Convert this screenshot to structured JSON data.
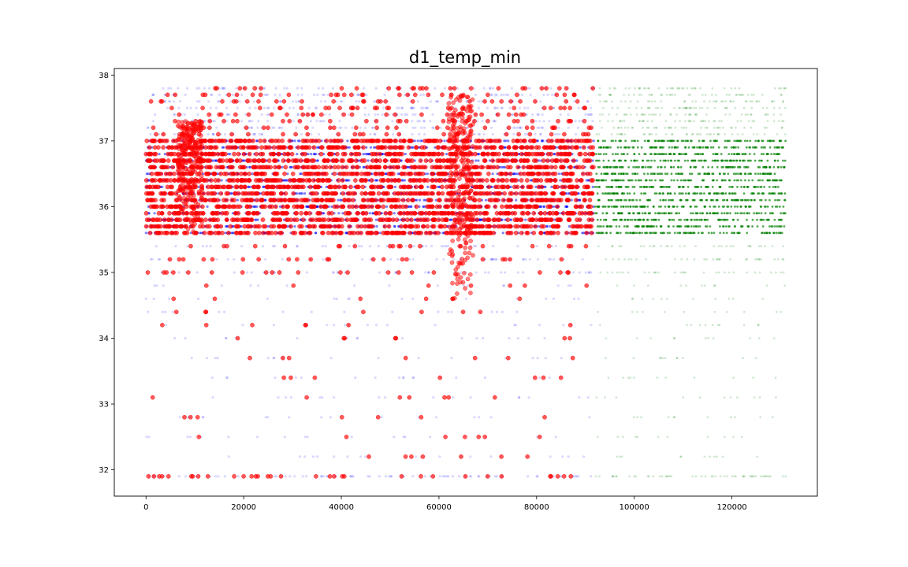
{
  "chart_data": {
    "type": "scatter",
    "title": "d1_temp_min",
    "xlabel": "",
    "ylabel": "",
    "xlim": [
      -6500,
      137500
    ],
    "ylim": [
      31.6,
      38.1
    ],
    "x_ticks": [
      0,
      20000,
      40000,
      60000,
      80000,
      100000,
      120000
    ],
    "x_tick_labels": [
      "0",
      "20000",
      "40000",
      "60000",
      "80000",
      "100000",
      "120000"
    ],
    "y_ticks": [
      32,
      33,
      34,
      35,
      36,
      37,
      38
    ],
    "y_tick_labels": [
      "32",
      "33",
      "34",
      "35",
      "36",
      "37",
      "38"
    ],
    "grid": false,
    "legend": "none",
    "y_levels": [
      31.9,
      32.2,
      32.5,
      32.8,
      33.1,
      33.4,
      33.7,
      34.0,
      34.2,
      34.4,
      34.6,
      34.8,
      35.0,
      35.2,
      35.4,
      35.6,
      35.7,
      35.8,
      35.9,
      36.0,
      36.1,
      36.2,
      36.3,
      36.4,
      36.5,
      36.6,
      36.7,
      36.8,
      36.9,
      37.0,
      37.1,
      37.2,
      37.3,
      37.4,
      37.5,
      37.6,
      37.7,
      37.8
    ],
    "series": [
      {
        "color": "#0000ff",
        "marker": "small-dot",
        "alpha": 0.15,
        "x_range": [
          0,
          91700
        ],
        "description_density": "dense in 35.6-37.0, sparse below 35"
      },
      {
        "color": "#ff0000",
        "marker": "circle",
        "alpha": 0.65,
        "x_range": [
          0,
          91700
        ],
        "clusters": [
          {
            "x_center": 9000,
            "y_range": [
              35.6,
              37.3
            ]
          },
          {
            "x_center": 64500,
            "y_range": [
              34.5,
              37.7
            ]
          }
        ]
      },
      {
        "color": "#008000",
        "marker": "small-dot",
        "alpha": 0.18,
        "x_range": [
          92000,
          131000
        ]
      }
    ]
  }
}
